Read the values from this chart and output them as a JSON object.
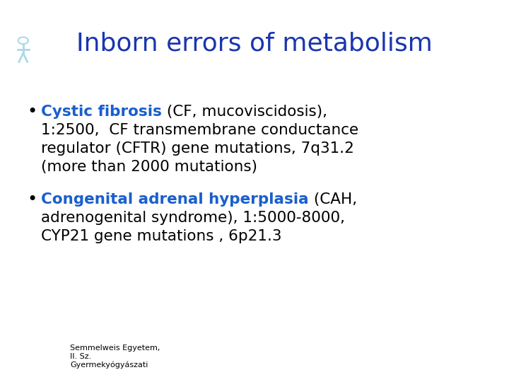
{
  "title": "Inborn errors of metabolism",
  "title_color": "#1a35b0",
  "title_fontsize": 26,
  "background_color": "#ffffff",
  "bullet1_colored": "Cystic fibrosis",
  "bullet1_colored_color": "#1a5fcc",
  "bullet1_line1_rest": " (CF, mucoviscidosis),",
  "bullet1_lines": [
    "1:2500,  CF transmembrane conductance",
    "regulator (CFTR) gene mutations, 7q31.2",
    "(more than 2000 mutations)"
  ],
  "bullet2_colored": "Congenital adrenal hyperplasia",
  "bullet2_colored_color": "#1a5fcc",
  "bullet2_line1_rest": " (CAH,",
  "bullet2_lines": [
    "adrenogenital syndrome), 1:5000-8000,",
    "CYP21 gene mutations , 6p21.3"
  ],
  "bullet_color": "#000000",
  "body_fontsize": 15.5,
  "footer_text1": "Semmelweis Egyetem,",
  "footer_text2": "II. Sz.",
  "footer_text3": "Gyermekyógyászati",
  "footer_fontsize": 8,
  "footer_text_color": "#000000"
}
